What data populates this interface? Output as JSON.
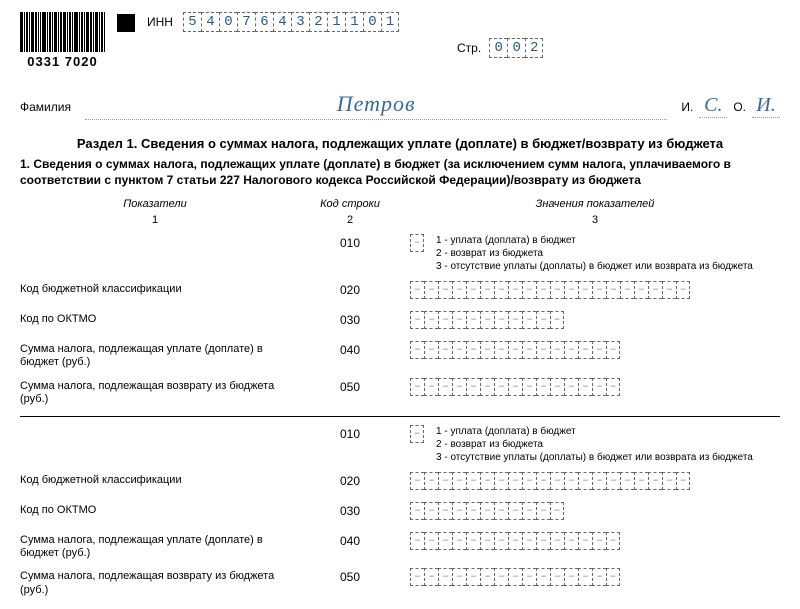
{
  "header": {
    "barcode_number": "0331 7020",
    "inn_label": "ИНН",
    "inn": [
      "5",
      "4",
      "0",
      "7",
      "6",
      "4",
      "3",
      "2",
      "1",
      "1",
      "0",
      "1"
    ],
    "page_label": "Стр.",
    "page": [
      "0",
      "0",
      "2"
    ]
  },
  "person": {
    "surname_label": "Фамилия",
    "surname": "Петров",
    "i_label": "И.",
    "o_label": "О.",
    "initial_i": "С.",
    "initial_o": "И."
  },
  "section": {
    "title": "Раздел 1. Сведения о суммах налога, подлежащих уплате (доплате) в бюджет/возврату из бюджета",
    "subtitle": "1. Сведения о суммах налога, подлежащих уплате (доплате) в бюджет (за исключением сумм налога, уплачиваемого в соответствии с пунктом 7 статьи 227 Налогового кодекса Российской Федерации)/возврату из бюджета",
    "col1": "Показатели",
    "col2": "Код строки",
    "col3": "Значения показателей",
    "n1": "1",
    "n2": "2",
    "n3": "3"
  },
  "legend": {
    "l1": "1 - уплата (доплата) в бюджет",
    "l2": "2 - возврат из бюджета",
    "l3": "3 - отсутствие уплаты (доплаты) в бюджет или возврата из бюджета"
  },
  "rows_labels": {
    "r020": "Код бюджетной классификации",
    "r030": "Код по ОКТМО",
    "r040": "Сумма налога, подлежащая уплате (доплате) в бюджет (руб.)",
    "r050": "Сумма налога, подлежащая возврату из бюджета (руб.)"
  },
  "codes": {
    "c010": "010",
    "c020": "020",
    "c030": "030",
    "c040": "040",
    "c050": "050"
  },
  "box_counts": {
    "r010": 1,
    "r020": 20,
    "r030": 11,
    "r040": 15,
    "r050": 15
  }
}
